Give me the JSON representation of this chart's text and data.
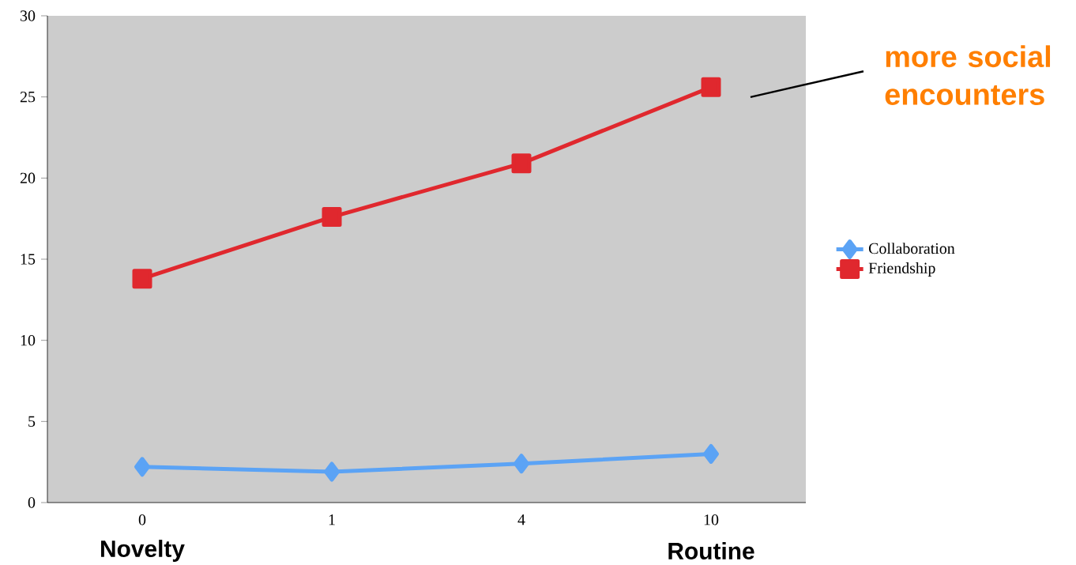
{
  "chart_data": {
    "type": "line",
    "categories": [
      "0",
      "1",
      "4",
      "10"
    ],
    "series": [
      {
        "name": "Collaboration",
        "color": "#5ba3f5",
        "marker": "diamond",
        "values": [
          2.2,
          1.9,
          2.4,
          3.0
        ]
      },
      {
        "name": "Friendship",
        "color": "#e0282e",
        "marker": "square",
        "values": [
          13.8,
          17.6,
          20.9,
          25.6
        ]
      }
    ],
    "ylim": [
      0,
      30
    ],
    "yticks": [
      0,
      5,
      10,
      15,
      20,
      25,
      30
    ],
    "legend": "right",
    "grid": false,
    "annotations": [
      "more social encounters",
      "Novelty",
      "Routine"
    ]
  }
}
